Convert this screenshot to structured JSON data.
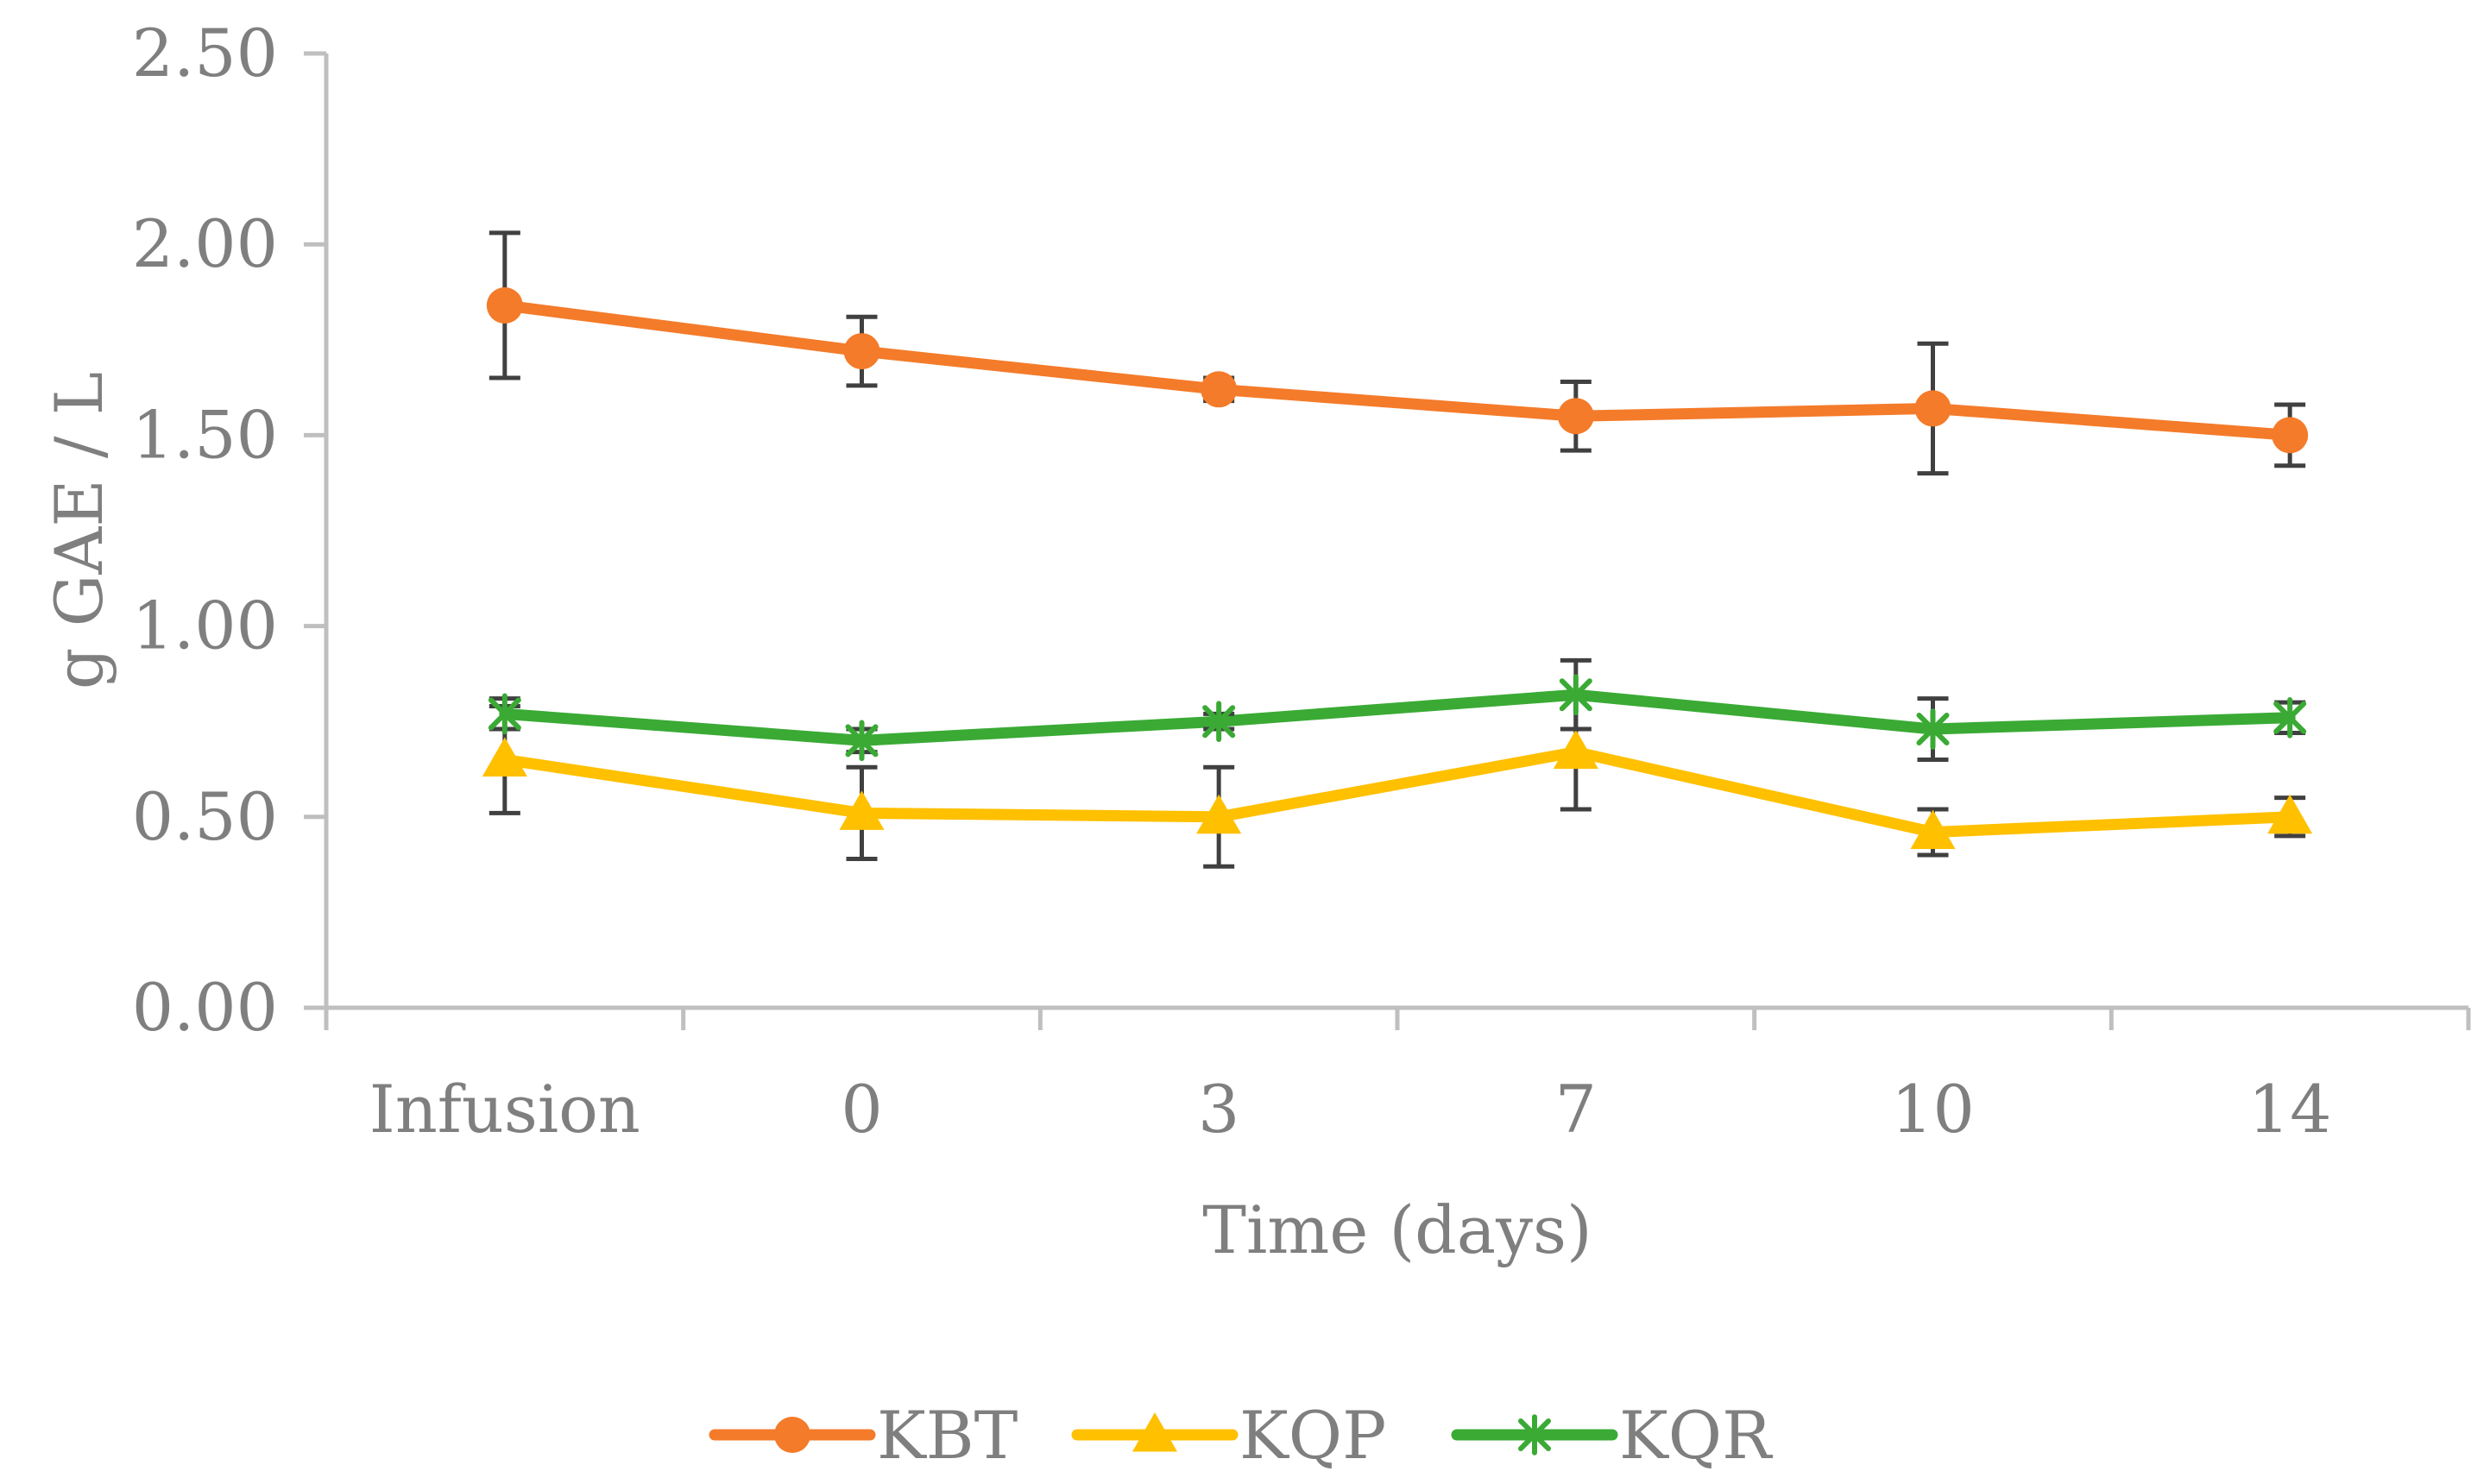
{
  "chart_data": {
    "type": "line",
    "categories": [
      "Infusion",
      "0",
      "3",
      "7",
      "10",
      "14"
    ],
    "xlabel": "Time (days)",
    "ylabel": "g GAE / L",
    "ylim": [
      0,
      2.5
    ],
    "yticks": [
      "0.00",
      "0.50",
      "1.00",
      "1.50",
      "2.00",
      "2.50"
    ],
    "grid": false,
    "legend_position": "bottom",
    "series": [
      {
        "name": "KBT",
        "color": "#f47b2a",
        "marker": "circle",
        "values": [
          1.84,
          1.72,
          1.62,
          1.55,
          1.57,
          1.5
        ],
        "error": [
          0.19,
          0.09,
          0.03,
          0.09,
          0.17,
          0.08
        ]
      },
      {
        "name": "KQP",
        "color": "#ffc000",
        "marker": "triangle",
        "values": [
          0.65,
          0.51,
          0.5,
          0.67,
          0.46,
          0.5
        ],
        "error": [
          0.14,
          0.12,
          0.13,
          0.15,
          0.06,
          0.05
        ]
      },
      {
        "name": "KQR",
        "color": "#3aaa35",
        "marker": "asterisk",
        "values": [
          0.77,
          0.7,
          0.75,
          0.82,
          0.73,
          0.76
        ],
        "error": [
          0.04,
          0.03,
          0.02,
          0.09,
          0.08,
          0.04
        ]
      }
    ]
  }
}
